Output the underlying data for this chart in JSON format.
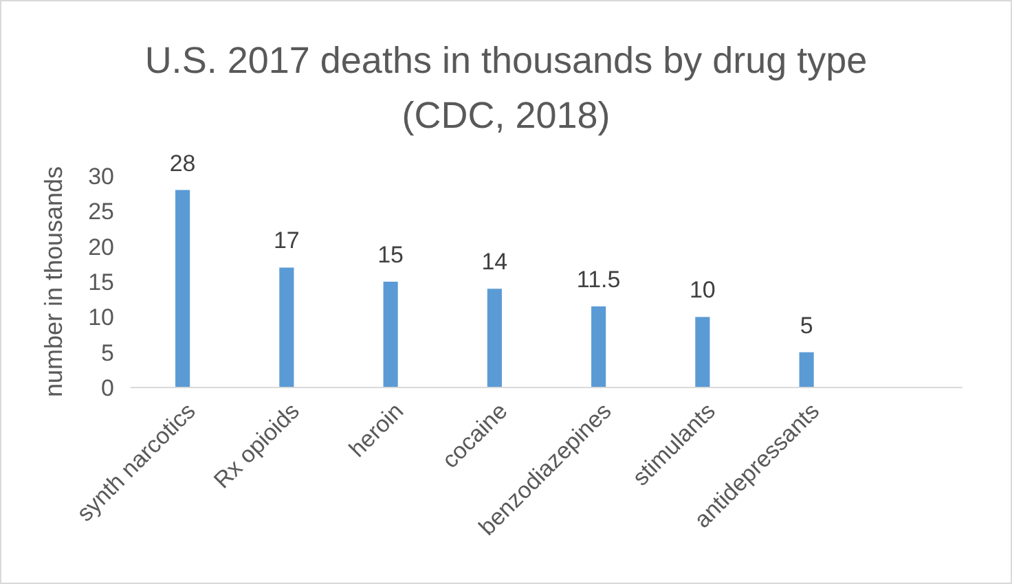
{
  "chart_data": {
    "type": "bar",
    "title": "U.S. 2017 deaths in thousands by drug type (CDC, 2018)",
    "ylabel": "number in thousands",
    "categories": [
      "synth narcotics",
      "Rx opioids",
      "heroin",
      "cocaine",
      "benzodiazepines",
      "stimulants",
      "antidepressants",
      null
    ],
    "values": [
      28,
      17,
      15,
      14,
      11.5,
      10,
      5,
      null
    ],
    "color": "#5b9bd5",
    "ylim": [
      0,
      30
    ],
    "yticks": [
      0,
      5,
      10,
      15,
      20,
      25,
      30
    ],
    "data_labels": true,
    "grid": false
  }
}
